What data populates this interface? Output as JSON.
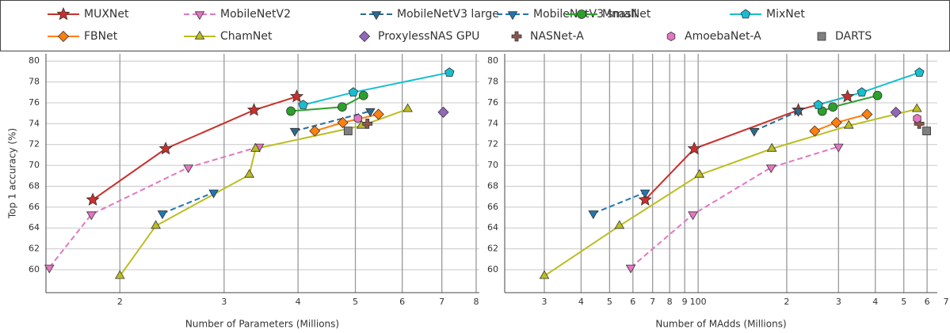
{
  "chart_data": [
    {
      "type": "scatter",
      "xlabel": "Number of Parameters (Millions)",
      "ylabel": "Top 1 accuracy (%)",
      "log_x": true,
      "grid": true,
      "xlim": [
        1.5,
        8.1
      ],
      "ylim": [
        57.8,
        80.7
      ],
      "xticks": [
        2,
        3,
        4,
        5,
        6,
        7,
        8
      ],
      "yticks": [
        60,
        62,
        64,
        66,
        68,
        70,
        72,
        74,
        76,
        78,
        80
      ],
      "series": [
        {
          "name": "MUXNet",
          "color": "#c9302c",
          "marker": "star",
          "mode": "lines+markers",
          "dash": false,
          "x": [
            1.8,
            2.39,
            3.37,
            3.98
          ],
          "values": [
            66.7,
            71.6,
            75.3,
            76.6
          ]
        },
        {
          "name": "MobileNetV2",
          "color": "#e377c2",
          "marker": "triangle-down",
          "mode": "lines+markers",
          "dash": true,
          "x": [
            1.52,
            1.79,
            2.61,
            3.44
          ],
          "values": [
            60.2,
            65.3,
            69.8,
            71.8
          ]
        },
        {
          "name": "MobileNetV3 large",
          "color": "#2a6a8f",
          "marker": "triangle-down",
          "mode": "lines+markers",
          "dash": true,
          "x": [
            3.95,
            5.3
          ],
          "values": [
            73.3,
            75.2
          ]
        },
        {
          "name": "MobileNetV3 small",
          "color": "#1f77b4",
          "marker": "triangle-down",
          "mode": "lines+markers",
          "dash": true,
          "x": [
            2.36,
            2.88
          ],
          "values": [
            65.4,
            67.4
          ]
        },
        {
          "name": "MnasNet",
          "color": "#2ca02c",
          "marker": "circle",
          "mode": "lines+markers",
          "dash": false,
          "x": [
            3.89,
            4.75,
            5.16
          ],
          "values": [
            75.2,
            75.6,
            76.7
          ]
        },
        {
          "name": "MixNet",
          "color": "#17becf",
          "marker": "pentagon",
          "mode": "lines+markers",
          "dash": false,
          "x": [
            4.08,
            4.96,
            7.21
          ],
          "values": [
            75.8,
            77.0,
            78.9
          ]
        },
        {
          "name": "FBNet",
          "color": "#ff7f0e",
          "marker": "diamond",
          "mode": "lines+markers",
          "dash": false,
          "x": [
            4.27,
            4.76,
            5.47
          ],
          "values": [
            73.3,
            74.1,
            74.9
          ]
        },
        {
          "name": "ChamNet",
          "color": "#bcbd22",
          "marker": "triangle-up",
          "mode": "lines+markers",
          "dash": false,
          "x": [
            2.0,
            2.3,
            3.31,
            3.39,
            5.12,
            6.13
          ],
          "values": [
            59.4,
            64.2,
            69.1,
            71.6,
            73.8,
            75.4
          ]
        },
        {
          "name": "ProxylessNAS GPU",
          "color": "#9467bd",
          "marker": "diamond",
          "mode": "markers",
          "dash": false,
          "x": [
            7.04
          ],
          "values": [
            75.1
          ]
        },
        {
          "name": "NASNet-A",
          "color": "#8c564b",
          "marker": "plus",
          "mode": "markers",
          "dash": false,
          "x": [
            5.24
          ],
          "values": [
            74.0
          ]
        },
        {
          "name": "AmoebaNet-A",
          "color": "#e377c2",
          "marker": "hexagon",
          "mode": "markers",
          "dash": false,
          "x": [
            5.05
          ],
          "values": [
            74.5
          ]
        },
        {
          "name": "DARTS",
          "color": "#7f7f7f",
          "marker": "square",
          "mode": "markers",
          "dash": false,
          "x": [
            4.86
          ],
          "values": [
            73.3
          ]
        }
      ]
    },
    {
      "type": "scatter",
      "xlabel": "Number of MAdds (Millions)",
      "log_x": true,
      "grid": true,
      "xlim": [
        22,
        650
      ],
      "ylim": [
        57.8,
        80.7
      ],
      "xticks": [
        {
          "value": 30,
          "label": "3"
        },
        {
          "value": 40,
          "label": "4"
        },
        {
          "value": 50,
          "label": "5"
        },
        {
          "value": 60,
          "label": "6"
        },
        {
          "value": 70,
          "label": "7"
        },
        {
          "value": 80,
          "label": "8"
        },
        {
          "value": 90,
          "label": "9"
        },
        100,
        {
          "value": 200,
          "label": "2"
        },
        {
          "value": 300,
          "label": "3"
        },
        {
          "value": 400,
          "label": "4"
        },
        {
          "value": 500,
          "label": "5"
        },
        {
          "value": 600,
          "label": "6"
        },
        {
          "value": 700,
          "label": "7"
        }
      ],
      "yticks": [
        60,
        62,
        64,
        66,
        68,
        70,
        72,
        74,
        76,
        78,
        80
      ],
      "series": [
        {
          "x": [
            66,
            97,
            219,
            322
          ],
          "values": [
            66.7,
            71.6,
            75.3,
            76.6
          ]
        },
        {
          "x": [
            59,
            96,
            177,
            300
          ],
          "values": [
            60.2,
            65.3,
            69.8,
            71.8
          ]
        },
        {
          "x": [
            155,
            219
          ],
          "values": [
            73.3,
            75.2
          ]
        },
        {
          "x": [
            44,
            66
          ],
          "values": [
            65.4,
            67.4
          ]
        },
        {
          "x": [
            264,
            287,
            407
          ],
          "values": [
            75.2,
            75.6,
            76.7
          ]
        },
        {
          "x": [
            256,
            360,
            565
          ],
          "values": [
            75.8,
            77.0,
            78.9
          ]
        },
        {
          "x": [
            249,
            295,
            375
          ],
          "values": [
            73.3,
            74.1,
            74.9
          ]
        },
        {
          "x": [
            30,
            54,
            101,
            178,
            325,
            554
          ],
          "values": [
            59.4,
            64.2,
            69.1,
            71.6,
            73.8,
            75.4
          ]
        },
        {
          "x": [
            470
          ],
          "values": [
            75.1
          ]
        },
        {
          "x": [
            564
          ],
          "values": [
            74.0
          ]
        },
        {
          "x": [
            555
          ],
          "values": [
            74.5
          ]
        },
        {
          "x": [
            598
          ],
          "values": [
            73.3
          ]
        }
      ]
    }
  ]
}
